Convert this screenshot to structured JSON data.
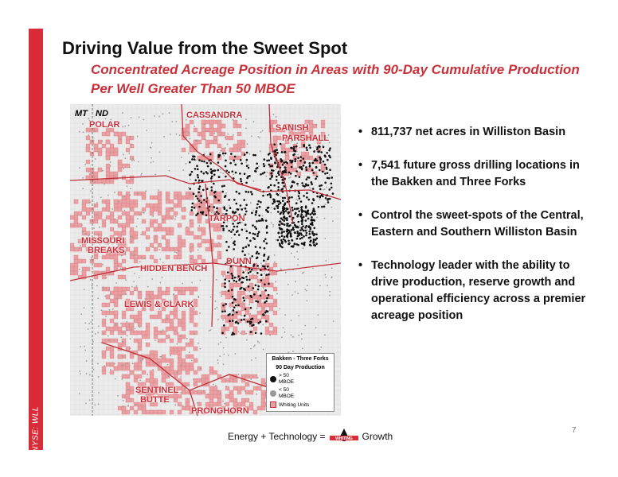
{
  "side_label": "NYSE: WLL",
  "title": "Driving Value from the Sweet Spot",
  "subtitle": "Concentrated Acreage Position in Areas with 90-Day Cumulative Production Per Well Greater Than 50 MBOE",
  "map": {
    "states": [
      "MT",
      "ND"
    ],
    "labels": {
      "polar": "POLAR",
      "cassandra": "CASSANDRA",
      "sanish": "SANISH",
      "parshall": "PARSHALL",
      "tarpon": "TARPON",
      "missouri": "MISSOURI",
      "breaks": "BREAKS",
      "dunn": "DUNN",
      "hidden_bench": "HIDDEN BENCH",
      "lewis_clark": "LEWIS & CLARK",
      "sentinel": "SENTINEL",
      "butte": "BUTTE",
      "pronghorn": "PRONGHORN"
    },
    "legend": {
      "title_line1": "Bakken - Three Forks",
      "title_line2": "90 Day Production",
      "item1_line1": "> 50",
      "item1_line2": "MBOE",
      "item2_line1": "< 50",
      "item2_line2": "MBOE",
      "item3": "Whiting Units"
    },
    "colors": {
      "units": "#e8a0a4",
      "boundary": "#c0303a",
      "high": "#111111",
      "low": "#9a9a9a"
    }
  },
  "bullets": [
    "811,737 net acres in Williston Basin",
    "7,541 future gross drilling locations in the Bakken and Three Forks",
    "Control the sweet-spots of the Central, Eastern and Southern Williston Basin",
    "Technology leader with the ability to drive production, reserve growth and operational efficiency across a premier acreage position"
  ],
  "footer": {
    "left": "Energy + Technology =",
    "logo_text": "WHITING",
    "right": "Growth"
  },
  "page_number": "7",
  "accent": "#d92b38"
}
